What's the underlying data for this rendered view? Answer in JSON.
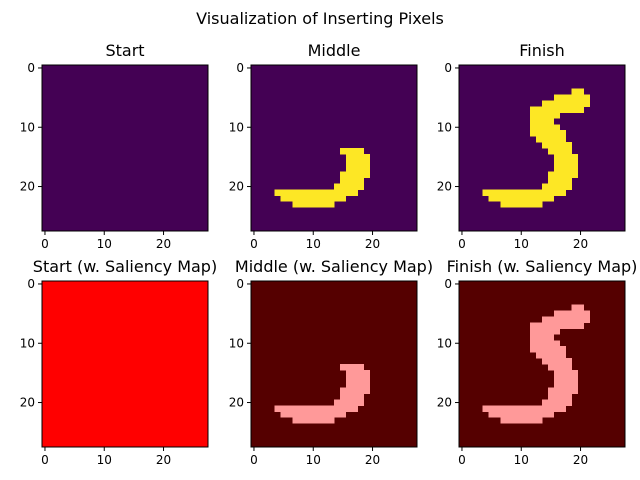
{
  "chart_data": {
    "type": "heatmap",
    "title": "Visualization of Inserting Pixels",
    "grid": false,
    "image_size": [
      28,
      28
    ],
    "xlim": [
      -0.5,
      27.5
    ],
    "ylim": [
      27.5,
      -0.5
    ],
    "xticks": [
      0,
      10,
      20
    ],
    "yticks": [
      0,
      10,
      20
    ],
    "colors": {
      "viridis_low": "#440154",
      "viridis_high": "#fde725",
      "saliency_low": "#550000",
      "saliency_high": "#ff9999",
      "saliency_full": "#ff0000"
    },
    "digit_pixels": [
      [
        4,
        19,
        20
      ],
      [
        5,
        16,
        21
      ],
      [
        6,
        14,
        21
      ],
      [
        7,
        12,
        20
      ],
      [
        8,
        12,
        16
      ],
      [
        9,
        12,
        15
      ],
      [
        10,
        12,
        16
      ],
      [
        11,
        12,
        17
      ],
      [
        12,
        13,
        17
      ],
      [
        13,
        14,
        18
      ],
      [
        14,
        15,
        18
      ],
      [
        15,
        16,
        19
      ],
      [
        16,
        16,
        19
      ],
      [
        17,
        16,
        19
      ],
      [
        18,
        15,
        19
      ],
      [
        19,
        15,
        18
      ],
      [
        20,
        14,
        18
      ],
      [
        21,
        4,
        17
      ],
      [
        22,
        5,
        15
      ],
      [
        23,
        7,
        13
      ]
    ],
    "middle_start_row": 14,
    "panels": [
      {
        "title": "Start",
        "stage": "start",
        "cmap": "viridis"
      },
      {
        "title": "Middle",
        "stage": "middle",
        "cmap": "viridis"
      },
      {
        "title": "Finish",
        "stage": "finish",
        "cmap": "viridis"
      },
      {
        "title": "Start (w. Saliency Map)",
        "stage": "start",
        "cmap": "saliency"
      },
      {
        "title": "Middle (w. Saliency Map)",
        "stage": "middle",
        "cmap": "saliency"
      },
      {
        "title": "Finish (w. Saliency Map)",
        "stage": "finish",
        "cmap": "saliency"
      }
    ]
  }
}
